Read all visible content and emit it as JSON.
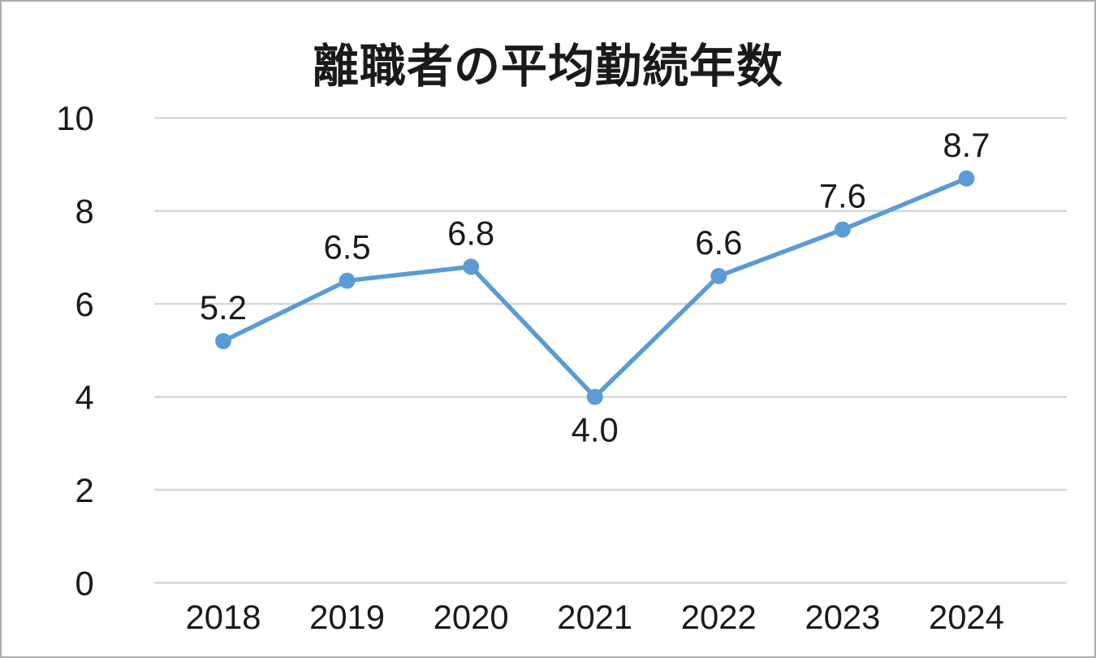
{
  "chart_data": {
    "type": "line",
    "title": "離職者の平均勤続年数",
    "categories": [
      "2018",
      "2019",
      "2020",
      "2021",
      "2022",
      "2023",
      "2024"
    ],
    "values": [
      5.2,
      6.5,
      6.8,
      4.0,
      6.6,
      7.6,
      8.7
    ],
    "data_labels": [
      "5.2",
      "6.5",
      "6.8",
      "4.0",
      "6.6",
      "7.6",
      "8.7"
    ],
    "label_below": [
      false,
      false,
      false,
      true,
      false,
      false,
      false
    ],
    "xlabel": "",
    "ylabel": "",
    "ylim": [
      0,
      10
    ],
    "yticks": [
      0,
      2,
      4,
      6,
      8,
      10
    ],
    "grid": true,
    "legend_position": "none",
    "line_color": "#5B9BD5",
    "marker_color": "#5B9BD5",
    "gridline_color": "#D6D6D6",
    "text_color": "#1a1a1a",
    "background_color": "#FFFFFF",
    "frame_border_color": "#ABABAB"
  }
}
